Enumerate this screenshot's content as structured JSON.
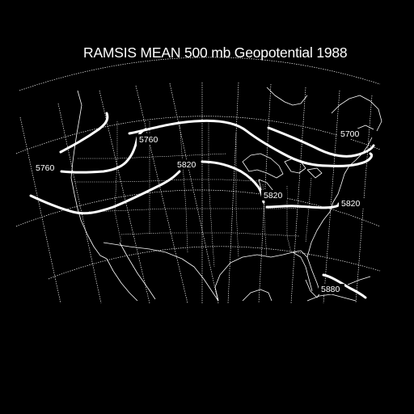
{
  "title": "RAMSIS MEAN 500 mb Geopotential 1988",
  "contours": [
    {
      "value": "5700",
      "label": "5700"
    },
    {
      "value": "5760",
      "label": "5760"
    },
    {
      "value": "5760",
      "label": "5760"
    },
    {
      "value": "5820",
      "label": "5820"
    },
    {
      "value": "5820",
      "label": "5820"
    },
    {
      "value": "5820",
      "label": "5820"
    },
    {
      "value": "5880",
      "label": "5880"
    }
  ],
  "colors": {
    "background": "#000000",
    "foreground": "#ffffff"
  }
}
